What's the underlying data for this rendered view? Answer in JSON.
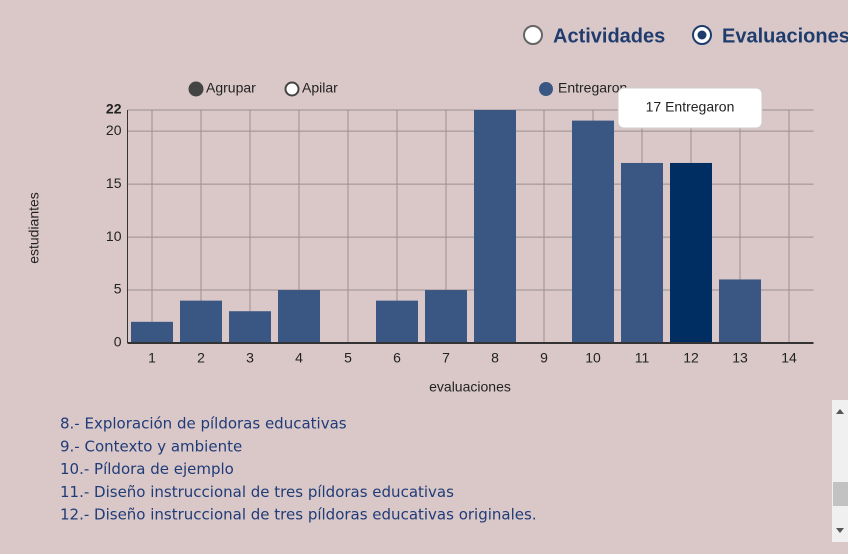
{
  "view_options": [
    {
      "label": "Actividades",
      "selected": false
    },
    {
      "label": "Evaluaciones",
      "selected": true
    }
  ],
  "chart_data": {
    "type": "bar",
    "mode_options": [
      {
        "label": "Agrupar",
        "selected": true
      },
      {
        "label": "Apilar",
        "selected": false
      }
    ],
    "categories": [
      "1",
      "2",
      "3",
      "4",
      "5",
      "6",
      "7",
      "8",
      "9",
      "10",
      "11",
      "12",
      "13",
      "14"
    ],
    "series": [
      {
        "name": "Entregaron",
        "color": "#3a5783",
        "values": [
          2,
          4,
          3,
          5,
          0,
          4,
          5,
          22,
          0,
          21,
          17,
          17,
          6,
          0
        ]
      }
    ],
    "highlight_category": "12",
    "highlight_color": "#002d62",
    "tooltip": "17 Entregaron",
    "ylabel": "estudiantes",
    "xlabel": "evaluaciones",
    "ylim": [
      0,
      22
    ],
    "yticks": [
      0,
      5,
      10,
      15,
      20,
      22
    ],
    "grid": true
  },
  "list": [
    "8.- Exploración de píldoras educativas",
    "9.- Contexto y ambiente",
    "10.- Píldora de ejemplo",
    "11.- Diseño instruccional de tres píldoras educativas",
    "12.- Diseño instruccional de tres píldoras educativas originales."
  ]
}
